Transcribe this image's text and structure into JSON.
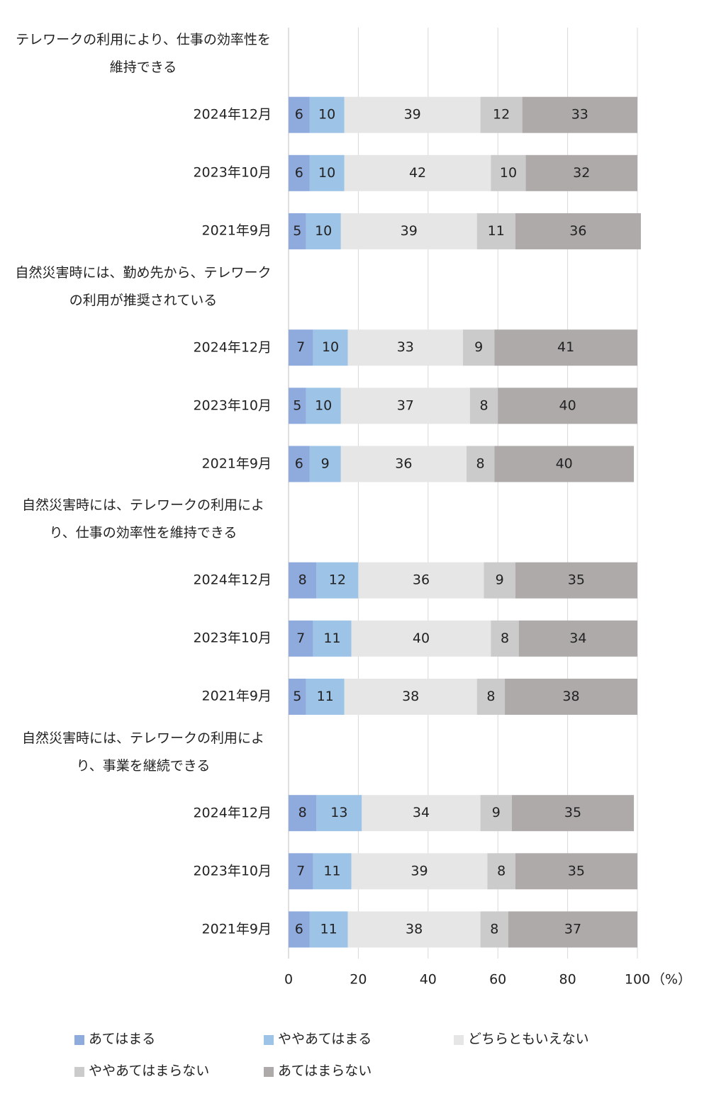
{
  "chart_data": {
    "type": "bar",
    "orientation": "horizontal",
    "stacked": true,
    "categories": [
      "テレワークの利用により、仕事の効率性を維持できる",
      "2024年12月",
      "2023年10月",
      "2021年9月",
      "自然災害時には、勤め先から、テレワークの利用が推奨されている",
      "2024年12月",
      "2023年10月",
      "2021年9月",
      "自然災害時には、テレワークの利用により、仕事の効率性を維持できる",
      "2024年12月",
      "2023年10月",
      "2021年9月",
      "自然災害時には、テレワークの利用により、事業を継続できる",
      "2024年12月",
      "2023年10月",
      "2021年9月"
    ],
    "series": [
      {
        "name": "あてはまる",
        "color": "#8faadc",
        "values": [
          null,
          6,
          6,
          5,
          null,
          7,
          5,
          6,
          null,
          8,
          7,
          5,
          null,
          8,
          7,
          6
        ]
      },
      {
        "name": "ややあてはまる",
        "color": "#9dc3e6",
        "values": [
          null,
          10,
          10,
          10,
          null,
          10,
          10,
          9,
          null,
          12,
          11,
          11,
          null,
          13,
          11,
          11
        ]
      },
      {
        "name": "どちらともいえない",
        "color": "#e7e6e6",
        "values": [
          null,
          39,
          42,
          39,
          null,
          33,
          37,
          36,
          null,
          36,
          40,
          38,
          null,
          34,
          39,
          38
        ]
      },
      {
        "name": "ややあてはまらない",
        "color": "#cbcbcb",
        "values": [
          null,
          12,
          10,
          11,
          null,
          9,
          8,
          8,
          null,
          9,
          8,
          8,
          null,
          9,
          8,
          8
        ]
      },
      {
        "name": "あてはまらない",
        "color": "#aeaaaa",
        "values": [
          null,
          33,
          32,
          36,
          null,
          41,
          40,
          40,
          null,
          35,
          34,
          38,
          null,
          35,
          35,
          37
        ]
      }
    ],
    "xlim": [
      0,
      100
    ],
    "xticks": [
      0,
      20,
      40,
      60,
      80,
      100
    ],
    "x_unit_label": "（%）",
    "grid": true,
    "legend": "bottom"
  }
}
